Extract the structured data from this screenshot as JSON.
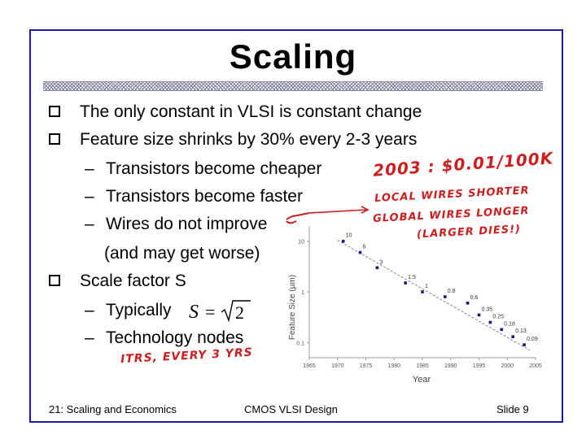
{
  "slide": {
    "title": "Scaling",
    "bullets": [
      "The only constant in VLSI is constant change",
      "Feature size shrinks by 30% every 2-3 years",
      "Scale factor S"
    ],
    "sub_items": [
      "Transistors become cheaper",
      "Transistors become faster",
      "Wires do not improve",
      "(and may get worse)",
      "Typically",
      "Technology nodes"
    ],
    "dash": "–",
    "formula": {
      "lhs": "S",
      "eq": "=",
      "radicand": "2"
    }
  },
  "annotations": {
    "cost": "2003 :  $0.01/100K",
    "local_wires": "LOCAL WIRES SHORTER",
    "global_wires": "GLOBAL WIRES LONGER",
    "larger_dies": "(LARGER DIES!)",
    "itrs": "ITRS, EVERY 3 YRS",
    "ink_color": "#cc1e1e"
  },
  "chart_data": {
    "type": "scatter",
    "xlabel": "Year",
    "ylabel": "Feature Size (µm)",
    "yscale": "log",
    "xlim": [
      1965,
      2005
    ],
    "ylim": [
      0.05,
      20
    ],
    "x_ticks": [
      "1965",
      "1970",
      "1975",
      "1980",
      "1985",
      "1990",
      "1995",
      "2000",
      "2005"
    ],
    "y_ticks": [
      "10",
      "1",
      "0.1"
    ],
    "y_tick_values": [
      10,
      1,
      0.1
    ],
    "points": [
      {
        "x": 1971,
        "y": 10,
        "label": "10"
      },
      {
        "x": 1974,
        "y": 6,
        "label": "6"
      },
      {
        "x": 1977,
        "y": 3,
        "label": "3"
      },
      {
        "x": 1982,
        "y": 1.5,
        "label": "1.5"
      },
      {
        "x": 1985,
        "y": 1,
        "label": "1"
      },
      {
        "x": 1989,
        "y": 0.8,
        "label": "0.8"
      },
      {
        "x": 1993,
        "y": 0.6,
        "label": "0.6"
      },
      {
        "x": 1995,
        "y": 0.35,
        "label": "0.35"
      },
      {
        "x": 1997,
        "y": 0.25,
        "label": "0.25"
      },
      {
        "x": 1999,
        "y": 0.18,
        "label": "0.18"
      },
      {
        "x": 2001,
        "y": 0.13,
        "label": "0.13"
      },
      {
        "x": 2003,
        "y": 0.09,
        "label": "0.09"
      }
    ],
    "trend": [
      {
        "x": 1970,
        "y": 10.5
      },
      {
        "x": 2004,
        "y": 0.07
      }
    ],
    "point_color": "#1a1a80"
  },
  "footer": {
    "left": "21: Scaling and Economics",
    "center": "CMOS VLSI Design",
    "right": "Slide 9"
  }
}
